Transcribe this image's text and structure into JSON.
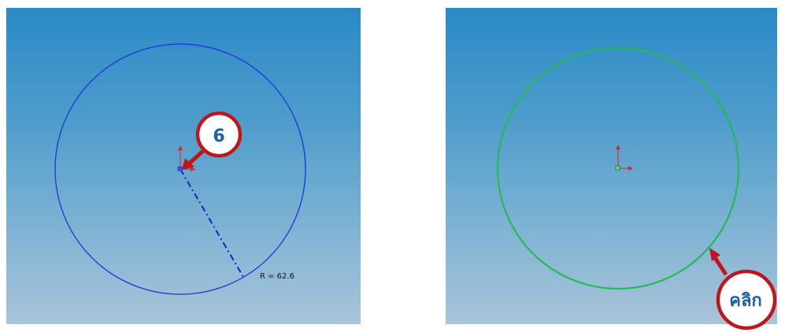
{
  "left_panel": {
    "step_callout": "6",
    "radius_readout": "R = 62.6",
    "circle_color": "#2222dd"
  },
  "right_panel": {
    "click_callout": "คลิก",
    "circle_color": "#22bb55"
  },
  "callout_color": "#c0151b",
  "axis_color": "#e02020",
  "icons": [
    "origin-axis-icon",
    "callout-arrow-icon"
  ]
}
